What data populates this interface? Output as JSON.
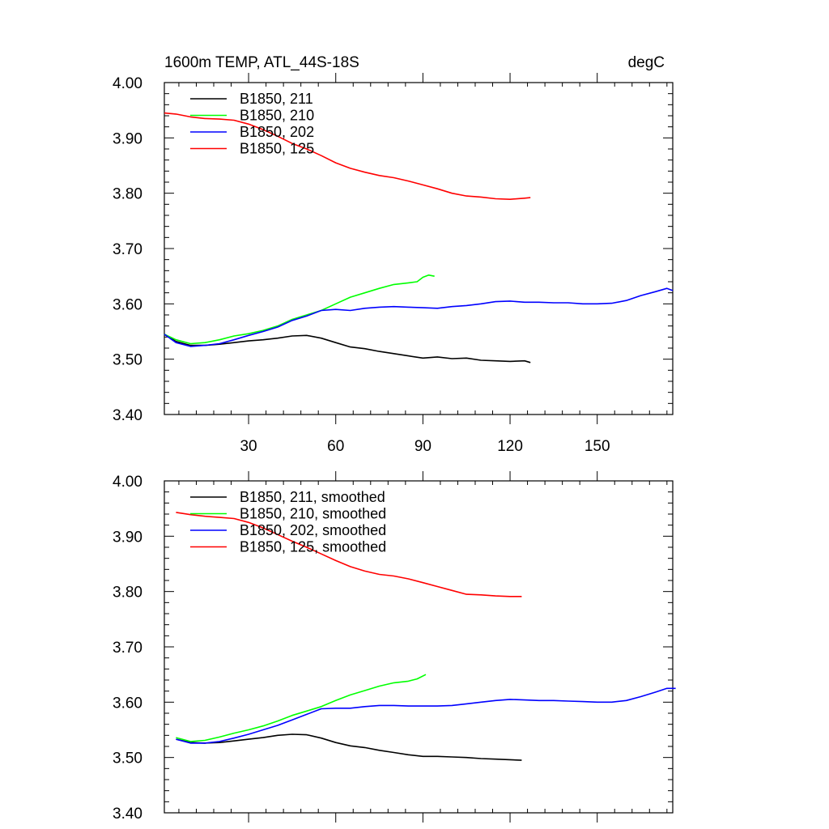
{
  "header": {
    "title": "1600m TEMP, ATL_44S-18S",
    "units": "degC"
  },
  "chart_data": [
    {
      "type": "line",
      "title": "1600m TEMP, ATL_44S-18S",
      "units": "degC",
      "xlim": [
        1,
        176
      ],
      "ylim": [
        3.4,
        4.0
      ],
      "x_ticks": [
        30,
        60,
        90,
        120,
        150
      ],
      "x_tick_labels": [
        "30",
        "60",
        "90",
        "120",
        "150"
      ],
      "y_ticks": [
        3.4,
        3.5,
        3.6,
        3.7,
        3.8,
        3.9,
        4.0
      ],
      "y_tick_labels": [
        "3.40",
        "3.50",
        "3.60",
        "3.70",
        "3.80",
        "3.90",
        "4.00"
      ],
      "legend_position": "top-left",
      "series": [
        {
          "name": "B1850, 211",
          "color": "#000000",
          "x": [
            1,
            5,
            10,
            15,
            20,
            25,
            30,
            35,
            40,
            45,
            50,
            55,
            60,
            65,
            70,
            75,
            80,
            85,
            90,
            95,
            100,
            105,
            110,
            115,
            120,
            125,
            127
          ],
          "y": [
            3.545,
            3.532,
            3.525,
            3.525,
            3.527,
            3.53,
            3.533,
            3.535,
            3.538,
            3.542,
            3.543,
            3.538,
            3.53,
            3.522,
            3.519,
            3.514,
            3.51,
            3.506,
            3.502,
            3.504,
            3.501,
            3.502,
            3.498,
            3.497,
            3.496,
            3.497,
            3.494
          ]
        },
        {
          "name": "B1850, 210",
          "color": "#00ff00",
          "x": [
            1,
            5,
            10,
            15,
            20,
            25,
            30,
            35,
            40,
            45,
            50,
            55,
            60,
            65,
            70,
            75,
            80,
            85,
            88,
            90,
            92,
            94
          ],
          "y": [
            3.545,
            3.535,
            3.528,
            3.53,
            3.535,
            3.542,
            3.546,
            3.552,
            3.56,
            3.572,
            3.58,
            3.588,
            3.6,
            3.612,
            3.62,
            3.628,
            3.635,
            3.638,
            3.64,
            3.648,
            3.652,
            3.65
          ]
        },
        {
          "name": "B1850, 202",
          "color": "#0000ff",
          "x": [
            1,
            5,
            10,
            15,
            20,
            25,
            30,
            35,
            40,
            45,
            50,
            55,
            60,
            65,
            70,
            75,
            80,
            85,
            90,
            95,
            100,
            105,
            110,
            115,
            120,
            125,
            130,
            135,
            140,
            145,
            150,
            155,
            160,
            165,
            170,
            174,
            176
          ],
          "y": [
            3.545,
            3.53,
            3.523,
            3.525,
            3.528,
            3.535,
            3.543,
            3.55,
            3.558,
            3.57,
            3.578,
            3.588,
            3.59,
            3.588,
            3.592,
            3.594,
            3.595,
            3.594,
            3.593,
            3.592,
            3.595,
            3.597,
            3.6,
            3.604,
            3.605,
            3.603,
            3.603,
            3.602,
            3.602,
            3.6,
            3.6,
            3.601,
            3.606,
            3.615,
            3.622,
            3.628,
            3.624
          ]
        },
        {
          "name": "B1850, 125",
          "color": "#ff0000",
          "x": [
            1,
            5,
            10,
            15,
            20,
            25,
            30,
            35,
            40,
            45,
            50,
            55,
            60,
            65,
            70,
            75,
            80,
            85,
            90,
            95,
            100,
            105,
            110,
            115,
            120,
            125,
            127
          ],
          "y": [
            3.945,
            3.943,
            3.938,
            3.935,
            3.934,
            3.932,
            3.925,
            3.915,
            3.903,
            3.89,
            3.88,
            3.868,
            3.855,
            3.845,
            3.838,
            3.832,
            3.828,
            3.822,
            3.815,
            3.808,
            3.8,
            3.795,
            3.793,
            3.79,
            3.789,
            3.791,
            3.792
          ]
        }
      ]
    },
    {
      "type": "line",
      "xlim": [
        1,
        176
      ],
      "ylim": [
        3.4,
        4.0
      ],
      "y_ticks": [
        3.4,
        3.5,
        3.6,
        3.7,
        3.8,
        3.9,
        4.0
      ],
      "y_tick_labels": [
        "3.40",
        "3.50",
        "3.60",
        "3.70",
        "3.80",
        "3.90",
        "4.00"
      ],
      "legend_position": "top-left",
      "series": [
        {
          "name": "B1850, 211, smoothed",
          "color": "#000000",
          "x": [
            5,
            10,
            15,
            20,
            25,
            30,
            35,
            40,
            45,
            50,
            55,
            60,
            65,
            70,
            75,
            80,
            85,
            90,
            95,
            100,
            105,
            110,
            115,
            120,
            124
          ],
          "y": [
            3.533,
            3.527,
            3.526,
            3.527,
            3.53,
            3.533,
            3.536,
            3.54,
            3.542,
            3.541,
            3.535,
            3.527,
            3.521,
            3.518,
            3.513,
            3.509,
            3.505,
            3.502,
            3.502,
            3.501,
            3.5,
            3.498,
            3.497,
            3.496,
            3.495
          ]
        },
        {
          "name": "B1850, 210, smoothed",
          "color": "#00ff00",
          "x": [
            5,
            10,
            15,
            20,
            25,
            30,
            35,
            40,
            45,
            50,
            55,
            60,
            65,
            70,
            75,
            80,
            85,
            88,
            91
          ],
          "y": [
            3.536,
            3.529,
            3.531,
            3.537,
            3.544,
            3.55,
            3.557,
            3.566,
            3.576,
            3.584,
            3.592,
            3.603,
            3.613,
            3.621,
            3.629,
            3.635,
            3.638,
            3.642,
            3.65
          ]
        },
        {
          "name": "B1850, 202, smoothed",
          "color": "#0000ff",
          "x": [
            5,
            10,
            15,
            20,
            25,
            30,
            35,
            40,
            45,
            50,
            55,
            60,
            65,
            70,
            75,
            80,
            85,
            90,
            95,
            100,
            105,
            110,
            115,
            120,
            125,
            130,
            135,
            140,
            145,
            150,
            155,
            160,
            165,
            170,
            174,
            177
          ],
          "y": [
            3.533,
            3.526,
            3.526,
            3.529,
            3.535,
            3.542,
            3.55,
            3.558,
            3.568,
            3.578,
            3.588,
            3.589,
            3.589,
            3.592,
            3.594,
            3.594,
            3.593,
            3.593,
            3.593,
            3.594,
            3.597,
            3.6,
            3.603,
            3.605,
            3.604,
            3.603,
            3.603,
            3.602,
            3.601,
            3.6,
            3.6,
            3.603,
            3.61,
            3.618,
            3.625,
            3.625
          ]
        },
        {
          "name": "B1850, 125, smoothed",
          "color": "#ff0000",
          "x": [
            5,
            10,
            15,
            20,
            25,
            30,
            35,
            40,
            45,
            50,
            55,
            60,
            65,
            70,
            75,
            80,
            85,
            90,
            95,
            100,
            105,
            110,
            115,
            120,
            124
          ],
          "y": [
            3.943,
            3.939,
            3.936,
            3.934,
            3.932,
            3.925,
            3.915,
            3.903,
            3.891,
            3.88,
            3.868,
            3.856,
            3.845,
            3.837,
            3.831,
            3.828,
            3.823,
            3.816,
            3.809,
            3.802,
            3.795,
            3.794,
            3.792,
            3.791,
            3.791
          ]
        }
      ]
    }
  ]
}
